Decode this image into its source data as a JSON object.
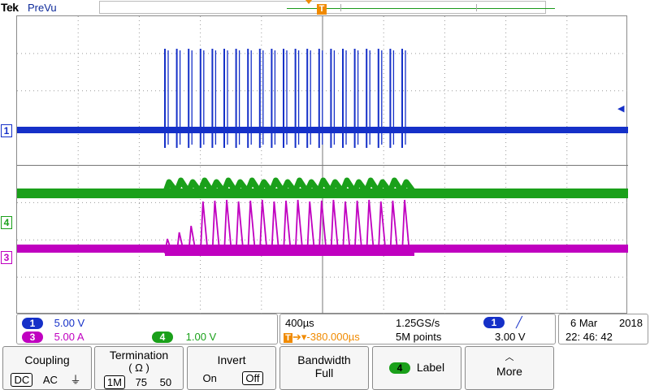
{
  "header": {
    "brand": "Tek",
    "mode": "PreVu"
  },
  "markers": {
    "trigger_top": "T",
    "trigger_second": "T",
    "ch1": "1",
    "ch4": "4",
    "ch3": "3"
  },
  "colors": {
    "ch1": "#1530c8",
    "ch3": "#c000c0",
    "ch4": "#1aa01a",
    "trigger": "#f08a00"
  },
  "channels": {
    "ch1": {
      "num": "1",
      "scale": "5.00 V"
    },
    "ch3": {
      "num": "3",
      "scale": "5.00 A"
    },
    "ch4": {
      "num": "4",
      "scale": "1.00 V"
    }
  },
  "timebase": {
    "per_div": "400µs",
    "sample_rate": "1.25GS/s",
    "trigger_pos": "-380.000µs",
    "trigger_prefix": "T",
    "record": "5M points"
  },
  "trigger": {
    "source": "1",
    "slope": "╱",
    "level": "3.00 V"
  },
  "datetime": {
    "day": "6 Mar",
    "year": "2018",
    "time": "22: 46: 42"
  },
  "softkeys": {
    "coupling": {
      "title": "Coupling",
      "options": [
        "DC",
        "AC",
        "⏚"
      ],
      "selected": "DC"
    },
    "termination": {
      "title": "Termination",
      "subtitle": "( Ω )",
      "options": [
        "1M",
        "75",
        "50"
      ],
      "selected": "1M"
    },
    "invert": {
      "title": "Invert",
      "options": [
        "On",
        "Off"
      ],
      "selected": "Off"
    },
    "bandwidth": {
      "title": "Bandwidth",
      "value": "Full"
    },
    "label": {
      "num": "4",
      "title": "Label"
    },
    "more": {
      "title": "More",
      "icon": "up-caret"
    }
  }
}
